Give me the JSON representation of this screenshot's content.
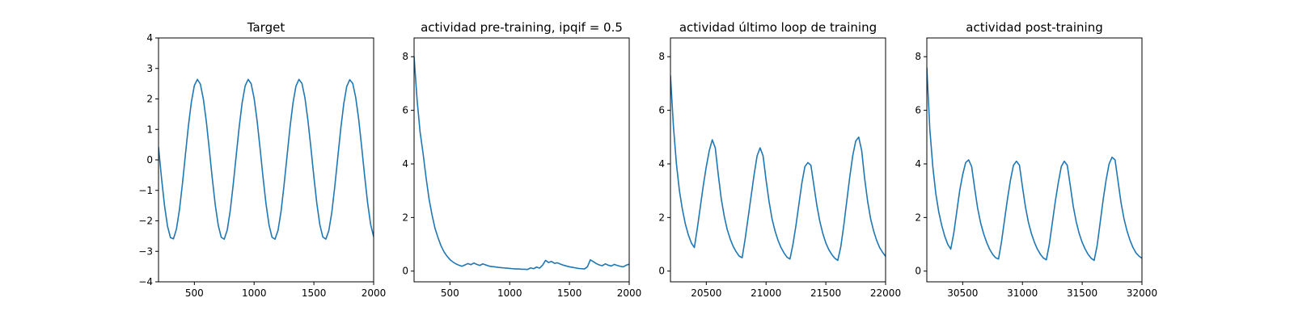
{
  "chart_data": [
    {
      "type": "line",
      "title": "Target",
      "xlabel": "",
      "ylabel": "",
      "xlim": [
        200,
        2000
      ],
      "ylim": [
        -4,
        4
      ],
      "xticks": [
        500,
        1000,
        1500,
        2000
      ],
      "yticks": [
        -4,
        -3,
        -2,
        -1,
        0,
        1,
        2,
        3,
        4
      ],
      "grid": false,
      "line_color": "#1f77b4",
      "series": [
        {
          "x": [
            200,
            225,
            250,
            275,
            300,
            325,
            350,
            375,
            400,
            425,
            450,
            475,
            500,
            525,
            550,
            575,
            600,
            625,
            650,
            675,
            700,
            725,
            750,
            775,
            800,
            825,
            850,
            875,
            900,
            925,
            950,
            975,
            1000,
            1025,
            1050,
            1075,
            1100,
            1125,
            1150,
            1175,
            1200,
            1225,
            1250,
            1275,
            1300,
            1325,
            1350,
            1375,
            1400,
            1425,
            1450,
            1475,
            1500,
            1525,
            1550,
            1575,
            1600,
            1625,
            1650,
            1675,
            1700,
            1725,
            1750,
            1775,
            1800,
            1825,
            1850,
            1875,
            1900,
            1925,
            1950,
            1975,
            2000
          ],
          "values": [
            0.42,
            -0.59,
            -1.49,
            -2.17,
            -2.55,
            -2.59,
            -2.27,
            -1.64,
            -0.79,
            0.17,
            1.11,
            1.9,
            2.44,
            2.64,
            2.49,
            2.0,
            1.26,
            0.34,
            -0.61,
            -1.48,
            -2.15,
            -2.54,
            -2.6,
            -2.3,
            -1.67,
            -0.81,
            0.14,
            1.08,
            1.88,
            2.43,
            2.64,
            2.5,
            2.02,
            1.28,
            0.37,
            -0.59,
            -1.46,
            -2.14,
            -2.54,
            -2.6,
            -2.31,
            -1.7,
            -0.84,
            0.11,
            1.06,
            1.86,
            2.42,
            2.64,
            2.51,
            2.04,
            1.3,
            0.4,
            -0.56,
            -1.44,
            -2.13,
            -2.53,
            -2.6,
            -2.32,
            -1.72,
            -0.87,
            0.08,
            1.03,
            1.84,
            2.41,
            2.63,
            2.51,
            2.05,
            1.33,
            0.42,
            -0.54,
            -1.42,
            -2.12,
            -2.52
          ]
        }
      ]
    },
    {
      "type": "line",
      "title": "actividad pre-training, ipqif = 0.5",
      "xlabel": "",
      "ylabel": "",
      "xlim": [
        200,
        2000
      ],
      "ylim": [
        -0.4,
        8.7
      ],
      "xticks": [
        500,
        1000,
        1500,
        2000
      ],
      "yticks": [
        0,
        2,
        4,
        6,
        8
      ],
      "grid": false,
      "line_color": "#1f77b4",
      "series": [
        {
          "x": [
            200,
            225,
            250,
            275,
            300,
            325,
            350,
            375,
            400,
            425,
            450,
            475,
            500,
            525,
            550,
            575,
            600,
            625,
            650,
            675,
            700,
            725,
            750,
            775,
            800,
            825,
            850,
            875,
            900,
            925,
            950,
            975,
            1000,
            1025,
            1050,
            1075,
            1100,
            1125,
            1150,
            1175,
            1200,
            1225,
            1250,
            1275,
            1300,
            1325,
            1350,
            1375,
            1400,
            1425,
            1450,
            1475,
            1500,
            1525,
            1550,
            1575,
            1600,
            1625,
            1650,
            1675,
            1700,
            1725,
            1750,
            1775,
            1800,
            1825,
            1850,
            1875,
            1900,
            1925,
            1950,
            1975,
            2000
          ],
          "values": [
            8.0,
            6.4,
            5.2,
            4.4,
            3.5,
            2.7,
            2.1,
            1.6,
            1.25,
            0.95,
            0.72,
            0.56,
            0.43,
            0.34,
            0.27,
            0.22,
            0.18,
            0.23,
            0.28,
            0.24,
            0.3,
            0.25,
            0.21,
            0.27,
            0.23,
            0.19,
            0.17,
            0.16,
            0.14,
            0.13,
            0.12,
            0.11,
            0.1,
            0.09,
            0.08,
            0.08,
            0.07,
            0.07,
            0.06,
            0.12,
            0.09,
            0.15,
            0.11,
            0.22,
            0.4,
            0.32,
            0.36,
            0.29,
            0.31,
            0.26,
            0.22,
            0.19,
            0.16,
            0.14,
            0.12,
            0.1,
            0.09,
            0.08,
            0.16,
            0.42,
            0.35,
            0.28,
            0.23,
            0.2,
            0.27,
            0.22,
            0.19,
            0.25,
            0.21,
            0.18,
            0.16,
            0.22,
            0.26
          ]
        }
      ]
    },
    {
      "type": "line",
      "title": "actividad último loop de training",
      "xlabel": "",
      "ylabel": "",
      "xlim": [
        20200,
        22000
      ],
      "ylim": [
        -0.4,
        8.7
      ],
      "xticks": [
        20500,
        21000,
        21500,
        22000
      ],
      "yticks": [
        0,
        2,
        4,
        6,
        8
      ],
      "grid": false,
      "line_color": "#1f77b4",
      "series": [
        {
          "x": [
            20200,
            20225,
            20250,
            20275,
            20300,
            20325,
            20350,
            20375,
            20400,
            20425,
            20450,
            20475,
            20500,
            20525,
            20550,
            20575,
            20600,
            20625,
            20650,
            20675,
            20700,
            20725,
            20750,
            20775,
            20800,
            20825,
            20850,
            20875,
            20900,
            20925,
            20950,
            20975,
            21000,
            21025,
            21050,
            21075,
            21100,
            21125,
            21150,
            21175,
            21200,
            21225,
            21250,
            21275,
            21300,
            21325,
            21350,
            21375,
            21400,
            21425,
            21450,
            21475,
            21500,
            21525,
            21550,
            21575,
            21600,
            21625,
            21650,
            21675,
            21700,
            21725,
            21750,
            21775,
            21800,
            21825,
            21850,
            21875,
            21900,
            21925,
            21950,
            21975,
            22000
          ],
          "values": [
            7.3,
            5.4,
            4.0,
            3.0,
            2.3,
            1.75,
            1.35,
            1.05,
            0.88,
            1.6,
            2.4,
            3.2,
            3.9,
            4.5,
            4.9,
            4.6,
            3.6,
            2.7,
            2.05,
            1.55,
            1.2,
            0.92,
            0.72,
            0.56,
            0.5,
            1.2,
            2.0,
            2.8,
            3.6,
            4.3,
            4.6,
            4.3,
            3.4,
            2.6,
            1.95,
            1.5,
            1.15,
            0.88,
            0.68,
            0.52,
            0.45,
            1.0,
            1.7,
            2.5,
            3.3,
            3.9,
            4.05,
            3.95,
            3.2,
            2.45,
            1.85,
            1.4,
            1.05,
            0.8,
            0.62,
            0.48,
            0.4,
            0.9,
            1.7,
            2.6,
            3.5,
            4.3,
            4.85,
            5.0,
            4.5,
            3.45,
            2.6,
            1.95,
            1.5,
            1.15,
            0.88,
            0.7,
            0.55
          ]
        }
      ]
    },
    {
      "type": "line",
      "title": "actividad post-training",
      "xlabel": "",
      "ylabel": "",
      "xlim": [
        30200,
        32000
      ],
      "ylim": [
        -0.4,
        8.7
      ],
      "xticks": [
        30500,
        31000,
        31500,
        32000
      ],
      "yticks": [
        0,
        2,
        4,
        6,
        8
      ],
      "grid": false,
      "line_color": "#1f77b4",
      "series": [
        {
          "x": [
            30200,
            30225,
            30250,
            30275,
            30300,
            30325,
            30350,
            30375,
            30400,
            30425,
            30450,
            30475,
            30500,
            30525,
            30550,
            30575,
            30600,
            30625,
            30650,
            30675,
            30700,
            30725,
            30750,
            30775,
            30800,
            30825,
            30850,
            30875,
            30900,
            30925,
            30950,
            30975,
            31000,
            31025,
            31050,
            31075,
            31100,
            31125,
            31150,
            31175,
            31200,
            31225,
            31250,
            31275,
            31300,
            31325,
            31350,
            31375,
            31400,
            31425,
            31450,
            31475,
            31500,
            31525,
            31550,
            31575,
            31600,
            31625,
            31650,
            31675,
            31700,
            31725,
            31750,
            31775,
            31800,
            31825,
            31850,
            31875,
            31900,
            31925,
            31950,
            31975,
            32000
          ],
          "values": [
            7.6,
            5.3,
            3.9,
            2.9,
            2.2,
            1.7,
            1.3,
            1.0,
            0.82,
            1.4,
            2.2,
            3.0,
            3.6,
            4.05,
            4.15,
            3.9,
            3.1,
            2.35,
            1.8,
            1.4,
            1.08,
            0.82,
            0.63,
            0.5,
            0.45,
            1.1,
            1.9,
            2.7,
            3.4,
            3.95,
            4.1,
            3.95,
            3.15,
            2.4,
            1.82,
            1.4,
            1.08,
            0.82,
            0.63,
            0.49,
            0.42,
            1.0,
            1.8,
            2.6,
            3.3,
            3.9,
            4.1,
            3.95,
            3.2,
            2.42,
            1.84,
            1.4,
            1.07,
            0.82,
            0.62,
            0.48,
            0.4,
            0.95,
            1.8,
            2.65,
            3.4,
            4.0,
            4.25,
            4.15,
            3.35,
            2.55,
            1.95,
            1.5,
            1.15,
            0.88,
            0.68,
            0.56,
            0.48
          ]
        }
      ]
    }
  ]
}
